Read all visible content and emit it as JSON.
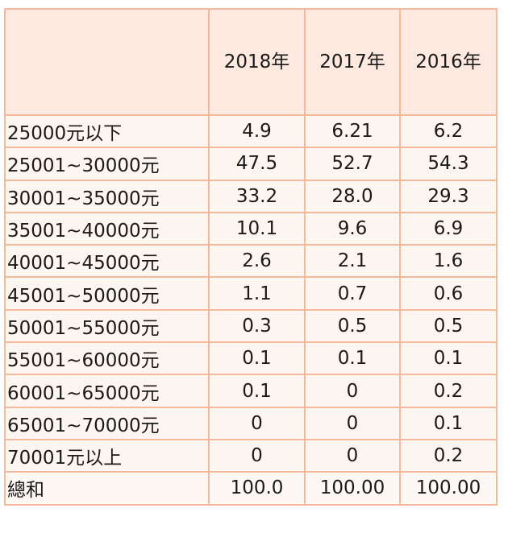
{
  "table": {
    "headers": [
      "",
      "2018年",
      "2017年",
      "2016年"
    ],
    "rows": [
      {
        "label": "25000元以下",
        "values": [
          "4.9",
          "6.21",
          "6.2"
        ]
      },
      {
        "label": "25001~30000元",
        "values": [
          "47.5",
          "52.7",
          "54.3"
        ]
      },
      {
        "label": "30001~35000元",
        "values": [
          "33.2",
          "28.0",
          "29.3"
        ]
      },
      {
        "label": "35001~40000元",
        "values": [
          "10.1",
          "9.6",
          "6.9"
        ]
      },
      {
        "label": "40001~45000元",
        "values": [
          "2.6",
          "2.1",
          "1.6"
        ]
      },
      {
        "label": "45001~50000元",
        "values": [
          "1.1",
          "0.7",
          "0.6"
        ]
      },
      {
        "label": "50001~55000元",
        "values": [
          "0.3",
          "0.5",
          "0.5"
        ]
      },
      {
        "label": "55001~60000元",
        "values": [
          "0.1",
          "0.1",
          "0.1"
        ]
      },
      {
        "label": "60001~65000元",
        "values": [
          "0.1",
          "0",
          "0.2"
        ]
      },
      {
        "label": "65001~70000元",
        "values": [
          "0",
          "0",
          "0.1"
        ]
      },
      {
        "label": "70001元以上",
        "values": [
          "0",
          "0",
          "0.2"
        ]
      },
      {
        "label": "總和",
        "values": [
          "100.0",
          "100.00",
          "100.00"
        ]
      }
    ]
  },
  "colors": {
    "border": "#f4b99a",
    "header_bg": "#fde9df",
    "cell_bg": "#fdf5f0",
    "text": "#1a1a1a"
  }
}
